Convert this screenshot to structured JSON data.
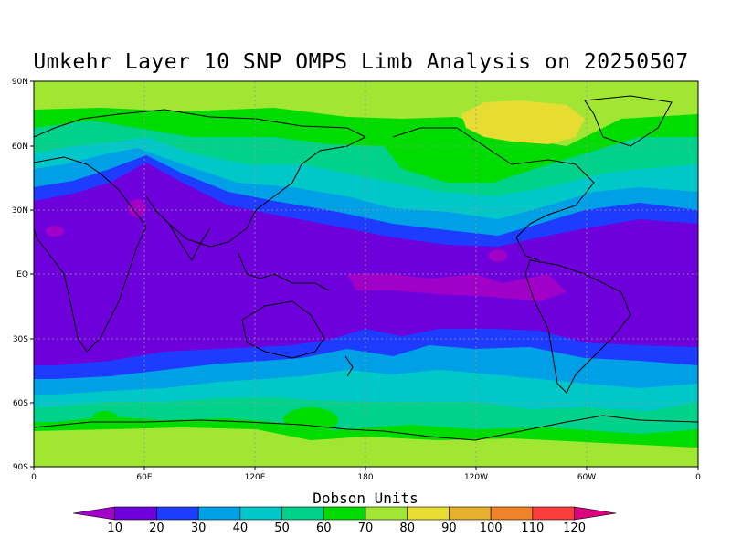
{
  "title": "Umkehr Layer 10 SNP OMPS Limb Analysis on 20250507",
  "lat_labels": [
    "90N",
    "60N",
    "30N",
    "EQ",
    "30S",
    "60S",
    "90S"
  ],
  "lon_labels": [
    "0",
    "60E",
    "120E",
    "180",
    "120W",
    "60W",
    "0"
  ],
  "colorbar": {
    "title": "Dobson Units",
    "labels": [
      "10",
      "20",
      "30",
      "40",
      "50",
      "60",
      "70",
      "80",
      "90",
      "100",
      "110",
      "120"
    ],
    "colors": [
      "#a000c8",
      "#6e00dc",
      "#1e3cff",
      "#00a0e6",
      "#00c8c8",
      "#00d28c",
      "#00dc00",
      "#a0e632",
      "#e6dc32",
      "#e6af2d",
      "#f08228",
      "#fa3c3c",
      "#dc0080"
    ]
  },
  "map_colors": {
    "band_10_20": "#6e00dc",
    "band_20_30": "#1e3cff",
    "band_30_40": "#00a0e6",
    "band_40_50": "#00c8c8",
    "band_50_60": "#00d28c",
    "band_60_70": "#00dc00",
    "band_70_80": "#a0e632",
    "band_80_90": "#e6dc32",
    "band_lt_10": "#a000c8"
  }
}
